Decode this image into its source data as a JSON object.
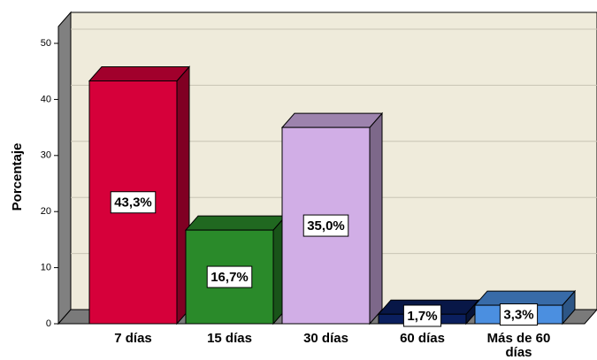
{
  "chart_data": {
    "type": "bar",
    "y_label": "Porcentaje",
    "categories": [
      "7 días",
      "15 días",
      "30 días",
      "60 días",
      "Más de 60 días"
    ],
    "values": [
      43.3,
      16.7,
      35.0,
      1.7,
      3.3
    ],
    "value_labels": [
      "43,3%",
      "16,7%",
      "35,0%",
      "1,7%",
      "3,3%"
    ],
    "colors": [
      "#d6003a",
      "#2a8a2a",
      "#d1aee6",
      "#0b1f5e",
      "#4b8fe0"
    ],
    "ylim": [
      0,
      53
    ],
    "yticks": [
      0,
      10,
      20,
      30,
      40,
      50
    ],
    "grid": true
  }
}
